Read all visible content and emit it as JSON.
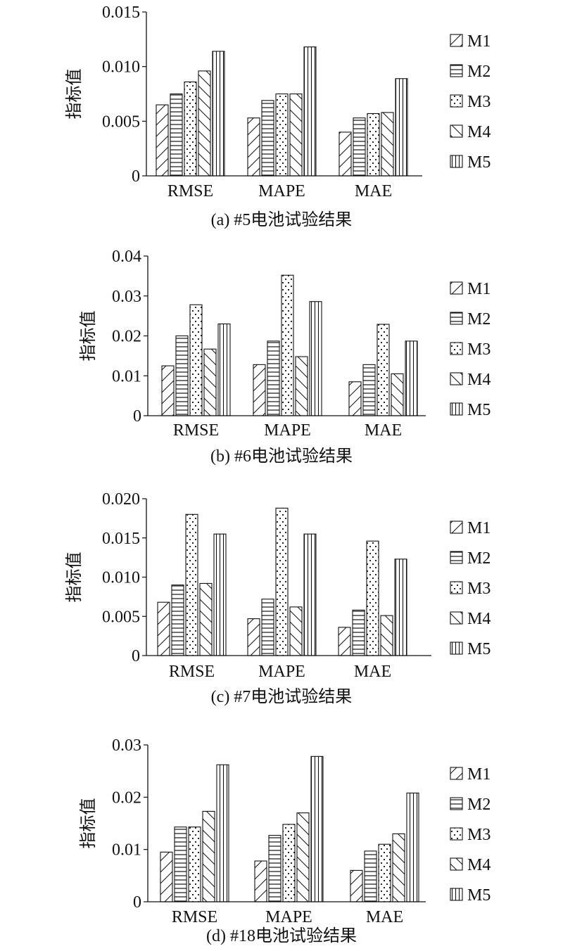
{
  "chart_data": [
    {
      "type": "bar",
      "title": "(a) #5电池试验结果",
      "ylabel": "指标值",
      "xlabel": "",
      "categories": [
        "RMSE",
        "MAPE",
        "MAE"
      ],
      "ylim": [
        0,
        0.015
      ],
      "yticks": [
        "0",
        "0.005",
        "0.010",
        "0.015"
      ],
      "legend": "right",
      "grid": false,
      "series": [
        {
          "name": "M1",
          "values": [
            0.0065,
            0.0053,
            0.004
          ]
        },
        {
          "name": "M2",
          "values": [
            0.0075,
            0.0069,
            0.0053
          ]
        },
        {
          "name": "M3",
          "values": [
            0.0086,
            0.0075,
            0.0057
          ]
        },
        {
          "name": "M4",
          "values": [
            0.0096,
            0.0075,
            0.0058
          ]
        },
        {
          "name": "M5",
          "values": [
            0.0114,
            0.0118,
            0.0089
          ]
        }
      ]
    },
    {
      "type": "bar",
      "title": "(b) #6电池试验结果",
      "ylabel": "指标值",
      "xlabel": "",
      "categories": [
        "RMSE",
        "MAPE",
        "MAE"
      ],
      "ylim": [
        0,
        0.04
      ],
      "yticks": [
        "0",
        "0.01",
        "0.02",
        "0.03",
        "0.04"
      ],
      "legend": "right",
      "grid": false,
      "series": [
        {
          "name": "M1",
          "values": [
            0.0125,
            0.0128,
            0.0085
          ]
        },
        {
          "name": "M2",
          "values": [
            0.02,
            0.0187,
            0.0128
          ]
        },
        {
          "name": "M3",
          "values": [
            0.0278,
            0.0352,
            0.0229
          ]
        },
        {
          "name": "M4",
          "values": [
            0.0167,
            0.0148,
            0.0105
          ]
        },
        {
          "name": "M5",
          "values": [
            0.023,
            0.0286,
            0.0187
          ]
        }
      ]
    },
    {
      "type": "bar",
      "title": "(c) #7电池试验结果",
      "ylabel": "指标值",
      "xlabel": "",
      "categories": [
        "RMSE",
        "MAPE",
        "MAE"
      ],
      "ylim": [
        0,
        0.02
      ],
      "yticks": [
        "0",
        "0.005",
        "0.010",
        "0.015",
        "0.020"
      ],
      "legend": "right",
      "grid": false,
      "series": [
        {
          "name": "M1",
          "values": [
            0.0068,
            0.0047,
            0.0036
          ]
        },
        {
          "name": "M2",
          "values": [
            0.009,
            0.0072,
            0.0058
          ]
        },
        {
          "name": "M3",
          "values": [
            0.018,
            0.0188,
            0.0146
          ]
        },
        {
          "name": "M4",
          "values": [
            0.0092,
            0.0062,
            0.0051
          ]
        },
        {
          "name": "M5",
          "values": [
            0.0155,
            0.0155,
            0.0123
          ]
        }
      ]
    },
    {
      "type": "bar",
      "title": "(d) #18电池试验结果",
      "ylabel": "指标值",
      "xlabel": "",
      "categories": [
        "RMSE",
        "MAPE",
        "MAE"
      ],
      "ylim": [
        0,
        0.03
      ],
      "yticks": [
        "0",
        "0.01",
        "0.02",
        "0.03"
      ],
      "legend": "right",
      "grid": false,
      "series": [
        {
          "name": "M1",
          "values": [
            0.0095,
            0.0078,
            0.006
          ]
        },
        {
          "name": "M2",
          "values": [
            0.0143,
            0.0127,
            0.0097
          ]
        },
        {
          "name": "M3",
          "values": [
            0.0143,
            0.0148,
            0.011
          ]
        },
        {
          "name": "M4",
          "values": [
            0.0173,
            0.017,
            0.013
          ]
        },
        {
          "name": "M5",
          "values": [
            0.0262,
            0.0278,
            0.0208
          ]
        }
      ]
    }
  ]
}
